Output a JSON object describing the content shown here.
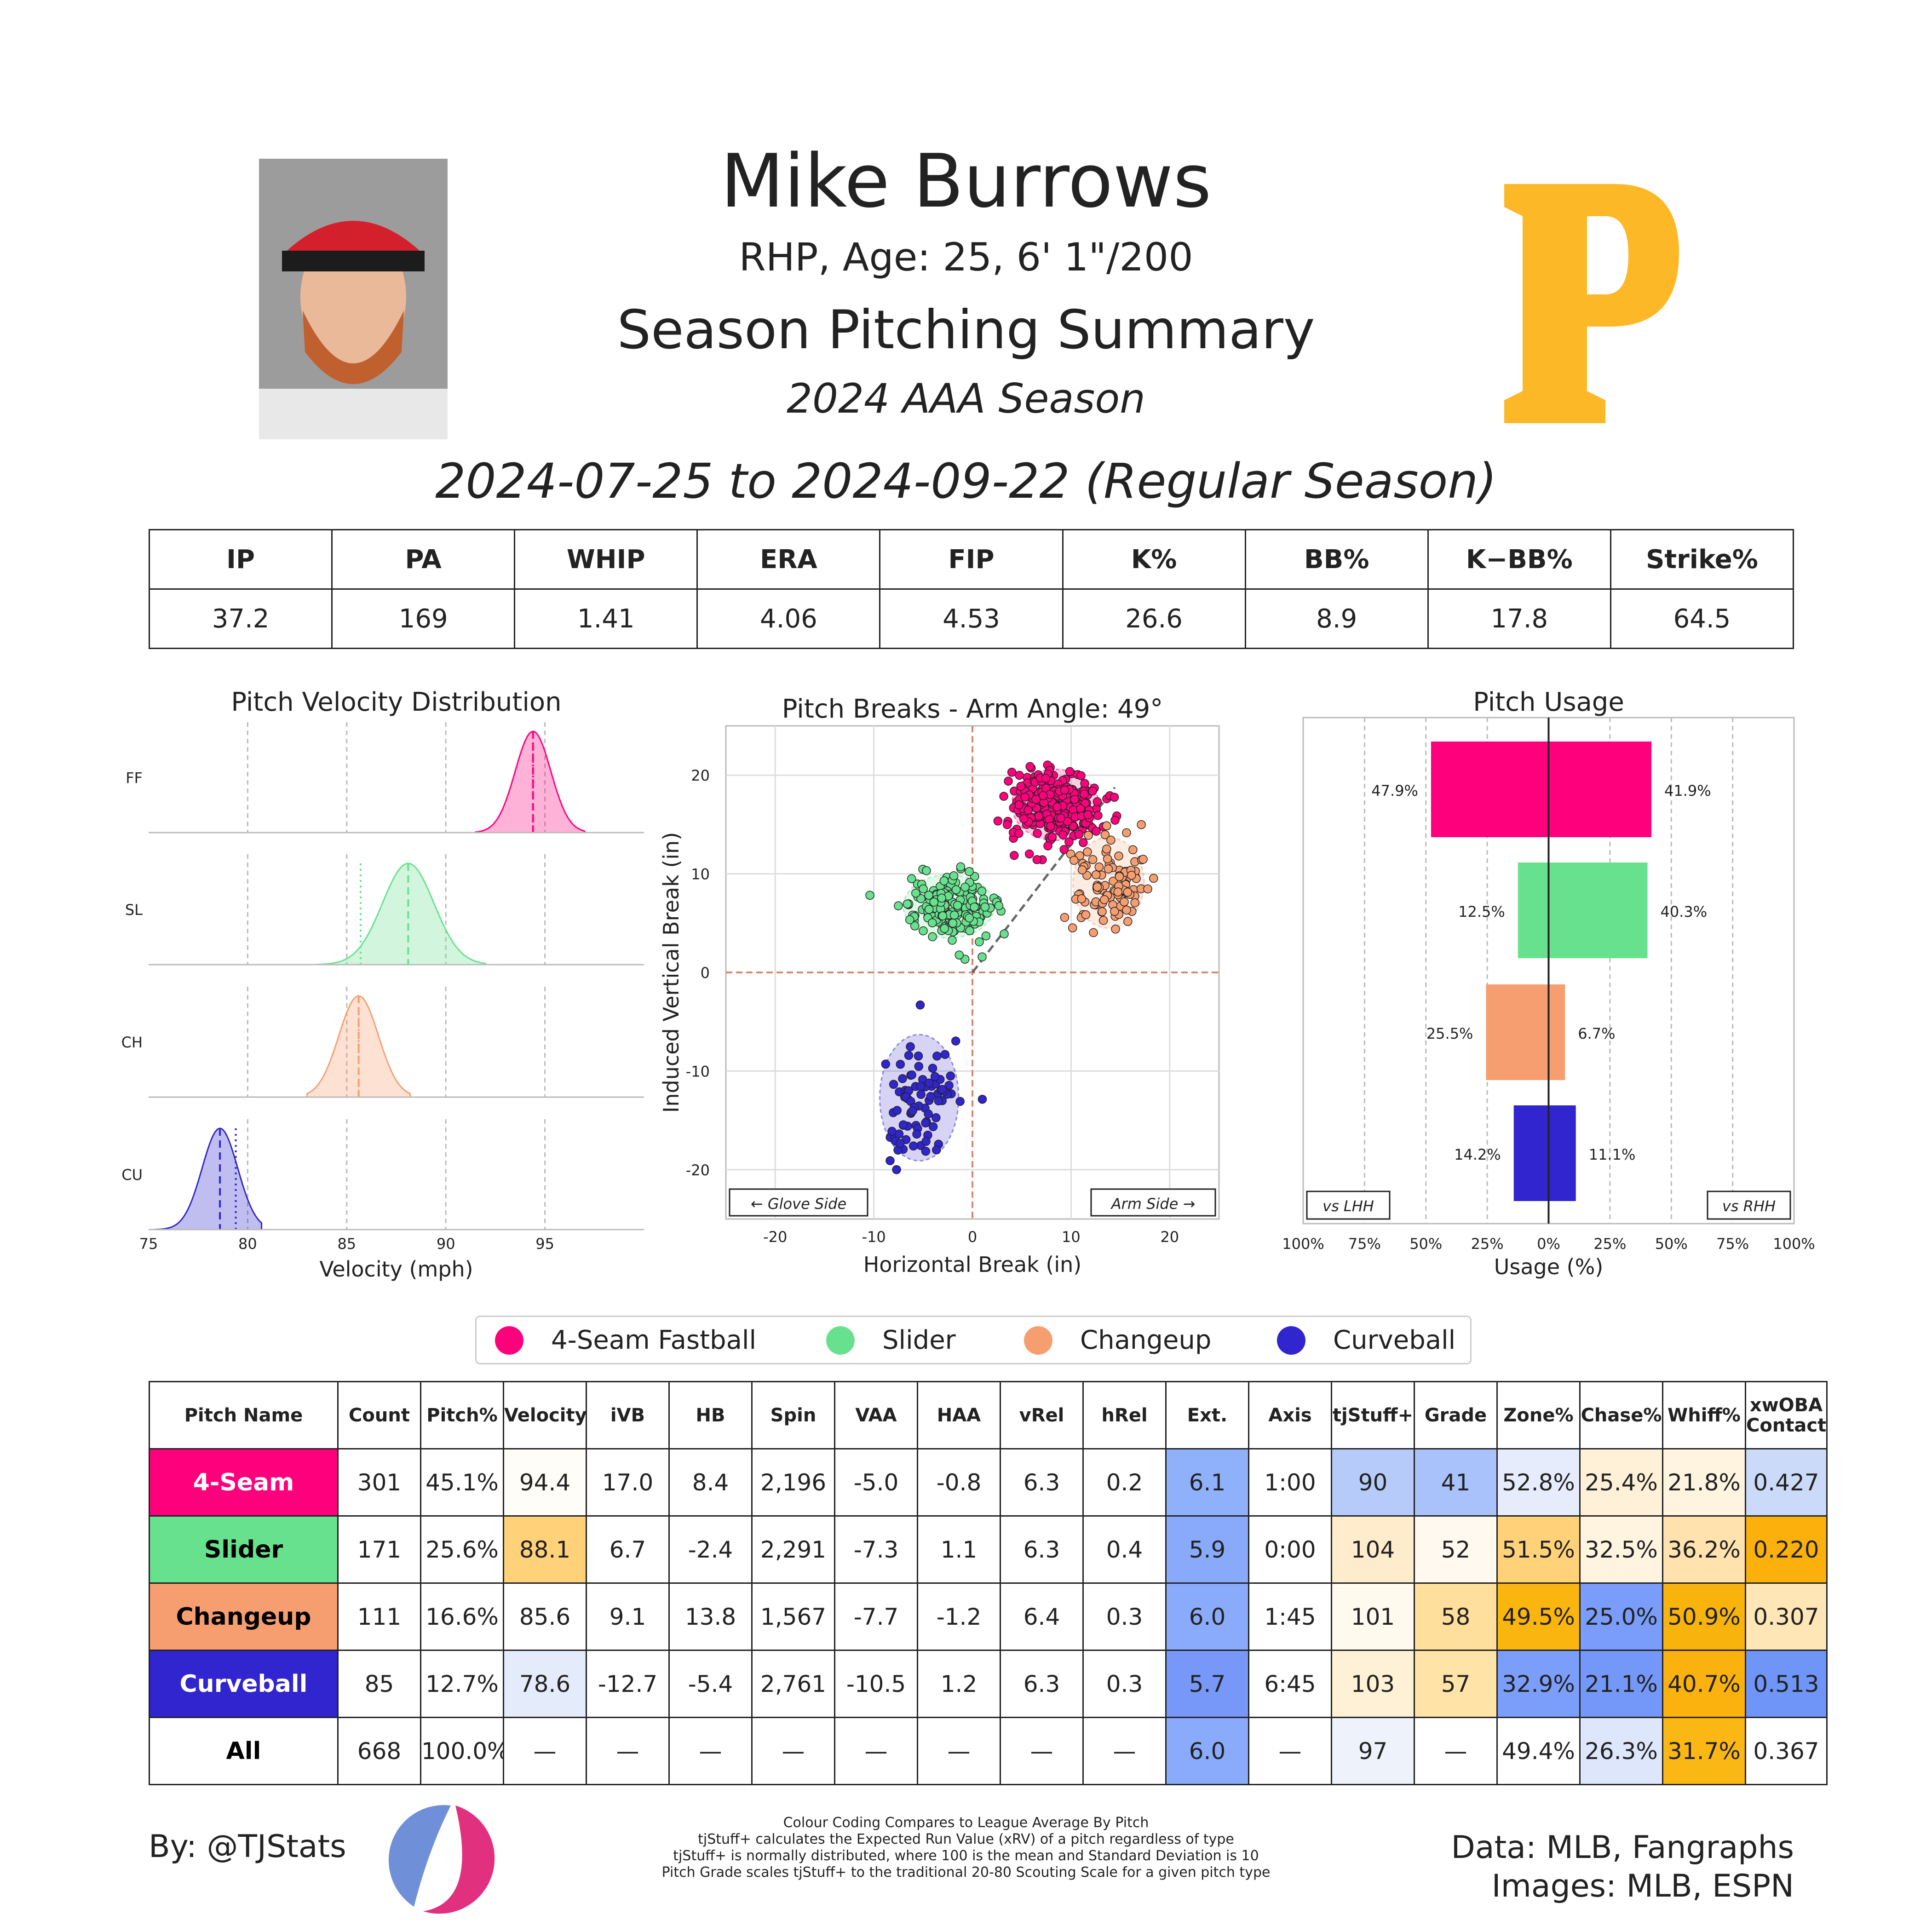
{
  "header": {
    "name": "Mike Burrows",
    "bio": "RHP, Age: 25, 6' 1\"/200",
    "summary": "Season Pitching Summary",
    "season": "2024 AAA Season",
    "date_range": "2024-07-25 to 2024-09-22 (Regular Season)"
  },
  "season_stats": {
    "headers": [
      "IP",
      "PA",
      "WHIP",
      "ERA",
      "FIP",
      "K%",
      "BB%",
      "K−BB%",
      "Strike%"
    ],
    "values": [
      "37.2",
      "169",
      "1.41",
      "4.06",
      "4.53",
      "26.6",
      "8.9",
      "17.8",
      "64.5"
    ]
  },
  "pitch_colors": {
    "FF": "#ff007d",
    "SL": "#67e18d",
    "CH": "#f79e70",
    "CU": "#3025ce"
  },
  "legend": [
    "4-Seam Fastball",
    "Slider",
    "Changeup",
    "Curveball"
  ],
  "chart_data": [
    {
      "type": "area",
      "title": "Pitch Velocity Distribution",
      "xlabel": "Velocity (mph)",
      "xlim": [
        75,
        100
      ],
      "xticks": [
        "75",
        "80",
        "85",
        "90",
        "95"
      ],
      "series": [
        {
          "name": "FF",
          "mean": 94.4,
          "sd": 0.9,
          "range": [
            91.5,
            97.0
          ]
        },
        {
          "name": "SL",
          "mean": 88.1,
          "sd": 1.3,
          "range": [
            83.5,
            92.0
          ]
        },
        {
          "name": "CH",
          "mean": 85.6,
          "sd": 1.0,
          "range": [
            83.0,
            88.2
          ]
        },
        {
          "name": "CU",
          "mean": 78.6,
          "sd": 0.9,
          "range": [
            75.3,
            80.7
          ]
        }
      ],
      "league_avg": {
        "FF": 94.4,
        "SL": 85.7,
        "CH": 85.6,
        "CU": 79.4
      }
    },
    {
      "type": "scatter",
      "title": "Pitch Breaks - Arm Angle: 49°",
      "xlabel": "Horizontal Break (in)",
      "ylabel": "Induced Vertical Break (in)",
      "xlim": [
        -25,
        25
      ],
      "ylim": [
        -25,
        25
      ],
      "xticks": [
        "-20",
        "-10",
        "0",
        "10",
        "20"
      ],
      "yticks": [
        "-20",
        "-10",
        "0",
        "10",
        "20"
      ],
      "annotations": [
        "← Glove Side",
        "Arm Side →"
      ],
      "clusters": [
        {
          "name": "FF",
          "hb": 8.4,
          "ivb": 17.0,
          "sd_hb": 2.2,
          "sd_ivb": 1.8,
          "n": 301
        },
        {
          "name": "SL",
          "hb": -2.4,
          "ivb": 6.7,
          "sd_hb": 2.3,
          "sd_ivb": 1.6,
          "n": 171
        },
        {
          "name": "CH",
          "hb": 13.8,
          "ivb": 9.1,
          "sd_hb": 1.8,
          "sd_ivb": 2.3,
          "n": 111
        },
        {
          "name": "CU",
          "hb": -5.4,
          "ivb": -12.7,
          "sd_hb": 2.0,
          "sd_ivb": 3.2,
          "n": 85
        }
      ]
    },
    {
      "type": "bar",
      "title": "Pitch Usage",
      "xlabel": "Usage (%)",
      "xticks": [
        "100%",
        "75%",
        "50%",
        "25%",
        "0%",
        "25%",
        "50%",
        "75%",
        "100%"
      ],
      "categories": [
        "FF",
        "SL",
        "CH",
        "CU"
      ],
      "series": [
        {
          "name": "vs LHH",
          "values": [
            47.9,
            12.5,
            25.5,
            14.2
          ]
        },
        {
          "name": "vs RHH",
          "values": [
            41.9,
            40.3,
            6.7,
            11.1
          ]
        }
      ],
      "labels_lhh": [
        "47.9%",
        "12.5%",
        "25.5%",
        "14.2%"
      ],
      "labels_rhh": [
        "41.9%",
        "40.3%",
        "6.7%",
        "11.1%"
      ]
    }
  ],
  "pitch_table": {
    "headers": [
      "Pitch Name",
      "Count",
      "Pitch%",
      "Velocity",
      "iVB",
      "HB",
      "Spin",
      "VAA",
      "HAA",
      "vRel",
      "hRel",
      "Ext.",
      "Axis",
      "tjStuff+",
      "Grade",
      "Zone%",
      "Chase%",
      "Whiff%",
      "xwOBA\nContact"
    ],
    "rows": [
      {
        "cells": [
          "4-Seam",
          "301",
          "45.1%",
          "94.4",
          "17.0",
          "8.4",
          "2,196",
          "-5.0",
          "-0.8",
          "6.3",
          "0.2",
          "6.1",
          "1:00",
          "90",
          "41",
          "52.8%",
          "25.4%",
          "21.8%",
          "0.427"
        ],
        "bg": [
          "#ff007d",
          "#fff",
          "#fff",
          "#fffdf8",
          "#fff",
          "#fff",
          "#fff",
          "#fff",
          "#fff",
          "#fff",
          "#fff",
          "#8fb0fb",
          "#fff",
          "#b7cbfa",
          "#a9c2fb",
          "#e6ecfb",
          "#fff1d8",
          "#fff4e0",
          "#ccdafa"
        ]
      },
      {
        "cells": [
          "Slider",
          "171",
          "25.6%",
          "88.1",
          "6.7",
          "-2.4",
          "2,291",
          "-7.3",
          "1.1",
          "6.3",
          "0.4",
          "5.9",
          "0:00",
          "104",
          "52",
          "51.5%",
          "32.5%",
          "36.2%",
          "0.220"
        ],
        "bg": [
          "#67e18d",
          "#fff",
          "#fff",
          "#ffd27a",
          "#fff",
          "#fff",
          "#fff",
          "#fff",
          "#fff",
          "#fff",
          "#fff",
          "#89a9fb",
          "#fff",
          "#ffeccc",
          "#fff9ef",
          "#ffd27a",
          "#fff4e0",
          "#ffe2ad",
          "#fbb00c"
        ]
      },
      {
        "cells": [
          "Changeup",
          "111",
          "16.6%",
          "85.6",
          "9.1",
          "13.8",
          "1,567",
          "-7.7",
          "-1.2",
          "6.4",
          "0.3",
          "6.0",
          "1:45",
          "101",
          "58",
          "49.5%",
          "25.0%",
          "50.9%",
          "0.307"
        ],
        "bg": [
          "#f79e70",
          "#fff",
          "#fff",
          "#fff",
          "#fff",
          "#fff",
          "#fff",
          "#fff",
          "#fff",
          "#fff",
          "#fff",
          "#8aabfb",
          "#fff",
          "#fff9ee",
          "#ffdf9b",
          "#fbb50f",
          "#7a9dfb",
          "#f8b40d",
          "#ffe6b6"
        ]
      },
      {
        "cells": [
          "Curveball",
          "85",
          "12.7%",
          "78.6",
          "-12.7",
          "-5.4",
          "2,761",
          "-10.5",
          "1.2",
          "6.3",
          "0.3",
          "5.7",
          "6:45",
          "103",
          "57",
          "32.9%",
          "21.1%",
          "40.7%",
          "0.513"
        ],
        "bg": [
          "#3025ce",
          "#fff",
          "#fff",
          "#e4ebfb",
          "#fff",
          "#fff",
          "#fff",
          "#fff",
          "#fff",
          "#fff",
          "#fff",
          "#7798f9",
          "#fff",
          "#fff1d6",
          "#ffe3a7",
          "#7c9efb",
          "#7498f9",
          "#fbb20e",
          "#6f95f9"
        ]
      },
      {
        "cells": [
          "All",
          "668",
          "100.0%",
          "—",
          "—",
          "—",
          "—",
          "—",
          "—",
          "—",
          "—",
          "6.0",
          "—",
          "97",
          "—",
          "49.4%",
          "26.3%",
          "31.7%",
          "0.367"
        ],
        "bg": [
          "#fff",
          "#fff",
          "#fff",
          "#fff",
          "#fff",
          "#fff",
          "#fff",
          "#fff",
          "#fff",
          "#fff",
          "#fff",
          "#8aabfb",
          "#fff",
          "#eef2fb",
          "#fff",
          "#fff",
          "#dde6fb",
          "#fbb714",
          "#fff"
        ]
      }
    ],
    "name_text_colors": [
      "#ffffff",
      "#000000",
      "#000000",
      "#ffffff",
      "#000000"
    ]
  },
  "footer": {
    "byline": "By: @TJStats",
    "notes": [
      "Colour Coding Compares to League Average By Pitch",
      "tjStuff+ calculates the Expected Run Value (xRV) of a pitch regardless of type",
      "tjStuff+ is normally distributed, where 100 is the mean and Standard Deviation is 10",
      "Pitch Grade scales tjStuff+ to the traditional 20-80 Scouting Scale for a given pitch type"
    ],
    "credits_1": "Data: MLB, Fangraphs",
    "credits_2": "Images: MLB, ESPN"
  }
}
